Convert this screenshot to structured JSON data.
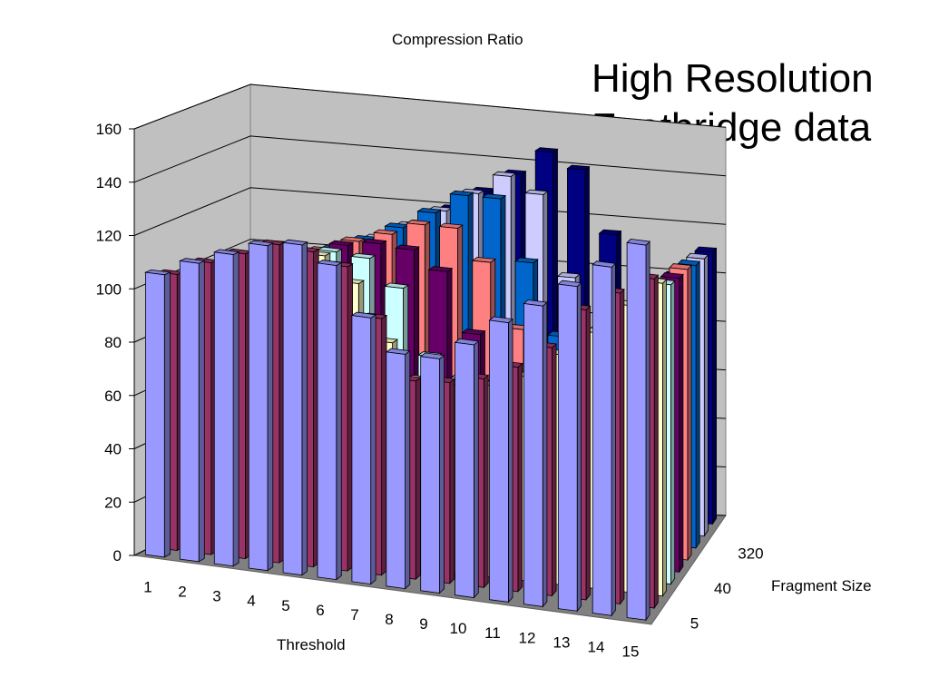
{
  "chart_data": {
    "type": "bar",
    "title": "Compression Ratio",
    "xlabel": "Threshold",
    "zlabel": "Fragment Size",
    "ylim": [
      0,
      160
    ],
    "y_ticks": [
      "0",
      "20",
      "40",
      "60",
      "80",
      "100",
      "120",
      "140",
      "160"
    ],
    "categories": [
      "1",
      "2",
      "3",
      "4",
      "5",
      "6",
      "7",
      "8",
      "9",
      "10",
      "11",
      "12",
      "13",
      "14",
      "15"
    ],
    "depth_tick_labels": [
      "5",
      "40",
      "320"
    ],
    "series": [
      {
        "color": "#9999ff",
        "values": [
          106,
          112,
          117,
          122,
          124,
          118,
          100,
          88,
          88,
          95,
          105,
          113,
          122,
          131,
          141
        ]
      },
      {
        "color": "#993366",
        "values": [
          104,
          110,
          115,
          120,
          119,
          115,
          97,
          75,
          76,
          79,
          85,
          94,
          110,
          118,
          125
        ]
      },
      {
        "color": "#ffffcc",
        "values": [
          100,
          103,
          110,
          114,
          115,
          106,
          85,
          72,
          72,
          73,
          78,
          88,
          98,
          110,
          120
        ]
      },
      {
        "color": "#ccffff",
        "values": [
          97,
          100,
          107,
          111,
          114,
          113,
          103,
          78,
          71,
          70,
          72,
          82,
          93,
          104,
          116
        ]
      },
      {
        "color": "#660066",
        "values": [
          95,
          98,
          105,
          110,
          114,
          116,
          115,
          108,
          85,
          72,
          70,
          81,
          92,
          103,
          115
        ]
      },
      {
        "color": "#ff8080",
        "values": [
          93,
          96,
          103,
          108,
          113,
          117,
          122,
          122,
          110,
          85,
          70,
          82,
          92,
          103,
          115
        ]
      },
      {
        "color": "#0066cc",
        "values": [
          90,
          94,
          101,
          106,
          111,
          117,
          124,
          132,
          132,
          108,
          80,
          80,
          90,
          102,
          113
        ]
      },
      {
        "color": "#ccccff",
        "values": [
          88,
          92,
          99,
          104,
          109,
          115,
          122,
          130,
          138,
          132,
          100,
          80,
          89,
          101,
          112
        ]
      },
      {
        "color": "#000080",
        "values": [
          86,
          90,
          97,
          102,
          107,
          113,
          120,
          128,
          136,
          146,
          140,
          115,
          88,
          100,
          111
        ]
      }
    ],
    "grid": true,
    "legend": "none"
  },
  "overlay_title": {
    "line1": "High Resolution",
    "line2": "Footbridge data"
  }
}
